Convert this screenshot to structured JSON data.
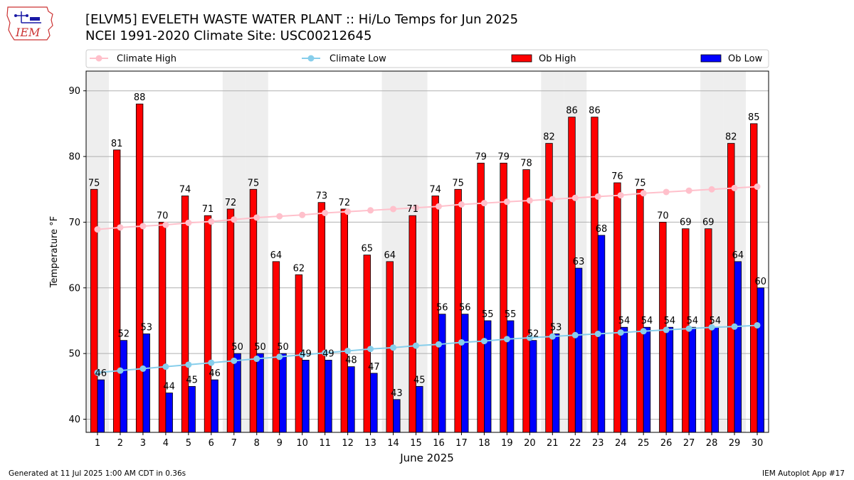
{
  "header": {
    "title_line1": "[ELVM5] EVELETH WASTE WATER PLANT :: Hi/Lo Temps for Jun 2025",
    "title_line2": "NCEI 1991-2020 Climate Site: USC00212645",
    "logo_text": "IEM"
  },
  "footer": {
    "generated": "Generated at 11 Jul 2025 1:00 AM CDT in 0.36s",
    "app": "IEM Autoplot App #17"
  },
  "colors": {
    "ob_high": "#ff0000",
    "ob_low": "#0000ff",
    "climate_high": "#ffc0cb",
    "climate_low": "#87ceeb",
    "weekend_shade": "#eeeeee",
    "grid": "#b0b0b0"
  },
  "chart_data": {
    "type": "bar",
    "xlabel": "June 2025",
    "ylabel": "Temperature °F",
    "ylim": [
      38,
      93
    ],
    "yticks": [
      40,
      50,
      60,
      70,
      80,
      90
    ],
    "grid": "horizontal",
    "legend": "top, above plot",
    "shaded_days": [
      1,
      7,
      8,
      14,
      15,
      21,
      22,
      28,
      29
    ],
    "categories": [
      "1",
      "2",
      "3",
      "4",
      "5",
      "6",
      "7",
      "8",
      "9",
      "10",
      "11",
      "12",
      "13",
      "14",
      "15",
      "16",
      "17",
      "18",
      "19",
      "20",
      "21",
      "22",
      "23",
      "24",
      "25",
      "26",
      "27",
      "28",
      "29",
      "30"
    ],
    "series": [
      {
        "name": "Ob High",
        "kind": "bar",
        "values": [
          75,
          81,
          88,
          70,
          74,
          71,
          72,
          75,
          64,
          62,
          73,
          72,
          65,
          64,
          71,
          74,
          75,
          79,
          79,
          78,
          82,
          86,
          86,
          76,
          75,
          70,
          69,
          69,
          82,
          85
        ]
      },
      {
        "name": "Ob Low",
        "kind": "bar",
        "values": [
          46,
          52,
          53,
          44,
          45,
          46,
          50,
          50,
          50,
          49,
          49,
          48,
          47,
          43,
          45,
          56,
          56,
          55,
          55,
          52,
          53,
          63,
          68,
          54,
          54,
          54,
          54,
          54,
          64,
          60
        ]
      },
      {
        "name": "Climate High",
        "kind": "line",
        "values": [
          68.9,
          69.2,
          69.4,
          69.6,
          69.9,
          70.1,
          70.4,
          70.7,
          70.9,
          71.1,
          71.4,
          71.6,
          71.8,
          72.0,
          72.2,
          72.4,
          72.7,
          72.9,
          73.1,
          73.3,
          73.5,
          73.7,
          73.9,
          74.1,
          74.4,
          74.6,
          74.8,
          75.0,
          75.2,
          75.4
        ]
      },
      {
        "name": "Climate Low",
        "kind": "line",
        "values": [
          47.1,
          47.4,
          47.7,
          48.0,
          48.3,
          48.6,
          48.9,
          49.2,
          49.5,
          49.8,
          50.1,
          50.4,
          50.7,
          50.9,
          51.2,
          51.4,
          51.7,
          51.9,
          52.2,
          52.4,
          52.6,
          52.8,
          53.0,
          53.2,
          53.4,
          53.6,
          53.8,
          54.0,
          54.1,
          54.3
        ]
      }
    ]
  }
}
